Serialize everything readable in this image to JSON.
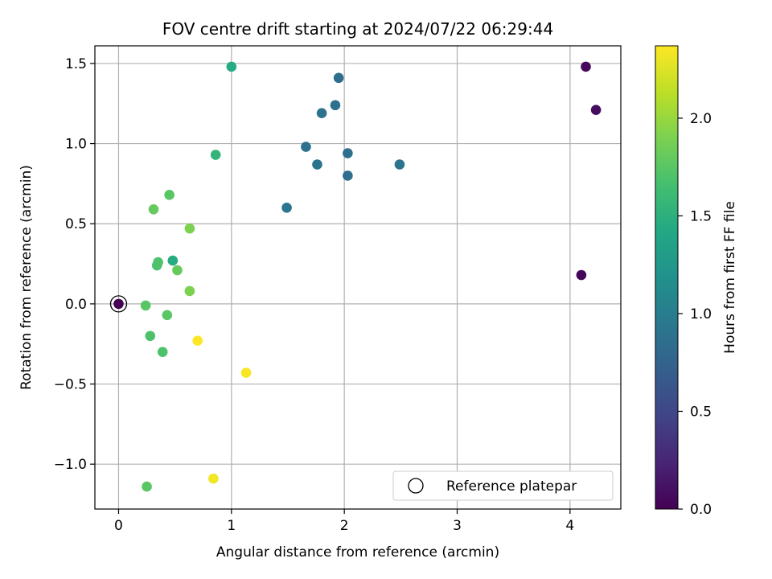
{
  "chart_data": {
    "type": "scatter",
    "title": "FOV centre drift starting at 2024/07/22 06:29:44",
    "xlabel": "Angular distance from reference (arcmin)",
    "ylabel": "Rotation from reference (arcmin)",
    "xlim": [
      -0.21,
      4.45
    ],
    "ylim": [
      -1.28,
      1.61
    ],
    "xticks": [
      0,
      1,
      2,
      3,
      4
    ],
    "xtick_labels": [
      "0",
      "1",
      "2",
      "3",
      "4"
    ],
    "yticks": [
      -1.0,
      -0.5,
      0.0,
      0.5,
      1.0,
      1.5
    ],
    "ytick_labels": [
      "−1.0",
      "−0.5",
      "0.0",
      "0.5",
      "1.0",
      "1.5"
    ],
    "grid": true,
    "colormap": "viridis",
    "colorbar": {
      "label": "Hours from first FF file",
      "range": [
        0.0,
        2.37
      ],
      "ticks": [
        0.0,
        0.5,
        1.0,
        1.5,
        2.0
      ],
      "tick_labels": [
        "0.0",
        "0.5",
        "1.0",
        "1.5",
        "2.0"
      ]
    },
    "points": [
      {
        "x": 4.14,
        "y": 1.48,
        "h": 0.05
      },
      {
        "x": 4.23,
        "y": 1.21,
        "h": 0.08
      },
      {
        "x": 4.1,
        "y": 0.18,
        "h": 0.04
      },
      {
        "x": 1.95,
        "y": 1.41,
        "h": 0.85
      },
      {
        "x": 1.92,
        "y": 1.24,
        "h": 0.88
      },
      {
        "x": 1.8,
        "y": 1.19,
        "h": 0.9
      },
      {
        "x": 1.66,
        "y": 0.98,
        "h": 0.88
      },
      {
        "x": 2.03,
        "y": 0.94,
        "h": 0.86
      },
      {
        "x": 1.76,
        "y": 0.87,
        "h": 0.9
      },
      {
        "x": 2.49,
        "y": 0.87,
        "h": 0.92
      },
      {
        "x": 2.03,
        "y": 0.8,
        "h": 0.85
      },
      {
        "x": 1.49,
        "y": 0.6,
        "h": 0.92
      },
      {
        "x": 1.0,
        "y": 1.48,
        "h": 1.45
      },
      {
        "x": 0.86,
        "y": 0.93,
        "h": 1.55
      },
      {
        "x": 0.48,
        "y": 0.27,
        "h": 1.45
      },
      {
        "x": 0.45,
        "y": 0.68,
        "h": 1.75
      },
      {
        "x": 0.31,
        "y": 0.59,
        "h": 1.8
      },
      {
        "x": 0.63,
        "y": 0.47,
        "h": 1.9
      },
      {
        "x": 0.35,
        "y": 0.26,
        "h": 1.7
      },
      {
        "x": 0.34,
        "y": 0.24,
        "h": 1.7
      },
      {
        "x": 0.52,
        "y": 0.21,
        "h": 1.8
      },
      {
        "x": 0.63,
        "y": 0.08,
        "h": 1.9
      },
      {
        "x": 0.24,
        "y": -0.01,
        "h": 1.75
      },
      {
        "x": 0.43,
        "y": -0.07,
        "h": 1.75
      },
      {
        "x": 0.28,
        "y": -0.2,
        "h": 1.7
      },
      {
        "x": 0.39,
        "y": -0.3,
        "h": 1.7
      },
      {
        "x": 0.25,
        "y": -1.14,
        "h": 1.75
      },
      {
        "x": 0.7,
        "y": -0.23,
        "h": 2.37
      },
      {
        "x": 1.13,
        "y": -0.43,
        "h": 2.35
      },
      {
        "x": 0.84,
        "y": -1.09,
        "h": 2.33
      },
      {
        "x": 0.0,
        "y": 0.0,
        "h": 0.0
      }
    ],
    "reference": {
      "x": 0.0,
      "y": 0.0
    },
    "legend": {
      "label": "Reference platepar",
      "placement": "lower right"
    }
  }
}
